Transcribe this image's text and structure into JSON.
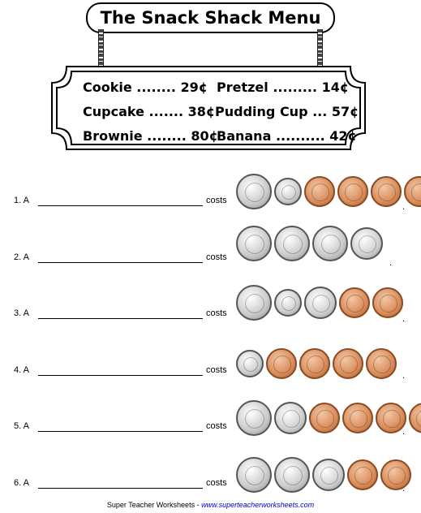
{
  "title": "The Snack Shack Menu",
  "menu": [
    [
      {
        "item": "Cookie ........ 29¢"
      },
      {
        "item": "Pretzel ......... 14¢"
      }
    ],
    [
      {
        "item": "Cupcake ....... 38¢"
      },
      {
        "item": "Pudding Cup ... 57¢"
      }
    ],
    [
      {
        "item": "Brownie ........ 80¢"
      },
      {
        "item": "Banana .......... 42¢"
      }
    ]
  ],
  "questions": [
    {
      "num": "1.  A",
      "costs": "costs",
      "coins": [
        "quarter",
        "dime",
        "penny",
        "penny",
        "penny",
        "penny"
      ]
    },
    {
      "num": "2.  A",
      "costs": "costs",
      "coins": [
        "quarter",
        "quarter",
        "quarter",
        "nickel"
      ]
    },
    {
      "num": "3.  A",
      "costs": "costs",
      "coins": [
        "quarter",
        "dime",
        "nickel",
        "penny",
        "penny"
      ]
    },
    {
      "num": "4.  A",
      "costs": "costs",
      "coins": [
        "dime",
        "penny",
        "penny",
        "penny",
        "penny"
      ]
    },
    {
      "num": "5.  A",
      "costs": "costs",
      "coins": [
        "quarter",
        "nickel",
        "penny",
        "penny",
        "penny",
        "penny"
      ]
    },
    {
      "num": "6.  A",
      "costs": "costs",
      "coins": [
        "quarter",
        "quarter",
        "nickel",
        "penny",
        "penny"
      ]
    }
  ],
  "footer": {
    "brand": "Super Teacher Worksheets  -  ",
    "url": "www.superteacherworksheets.com"
  }
}
